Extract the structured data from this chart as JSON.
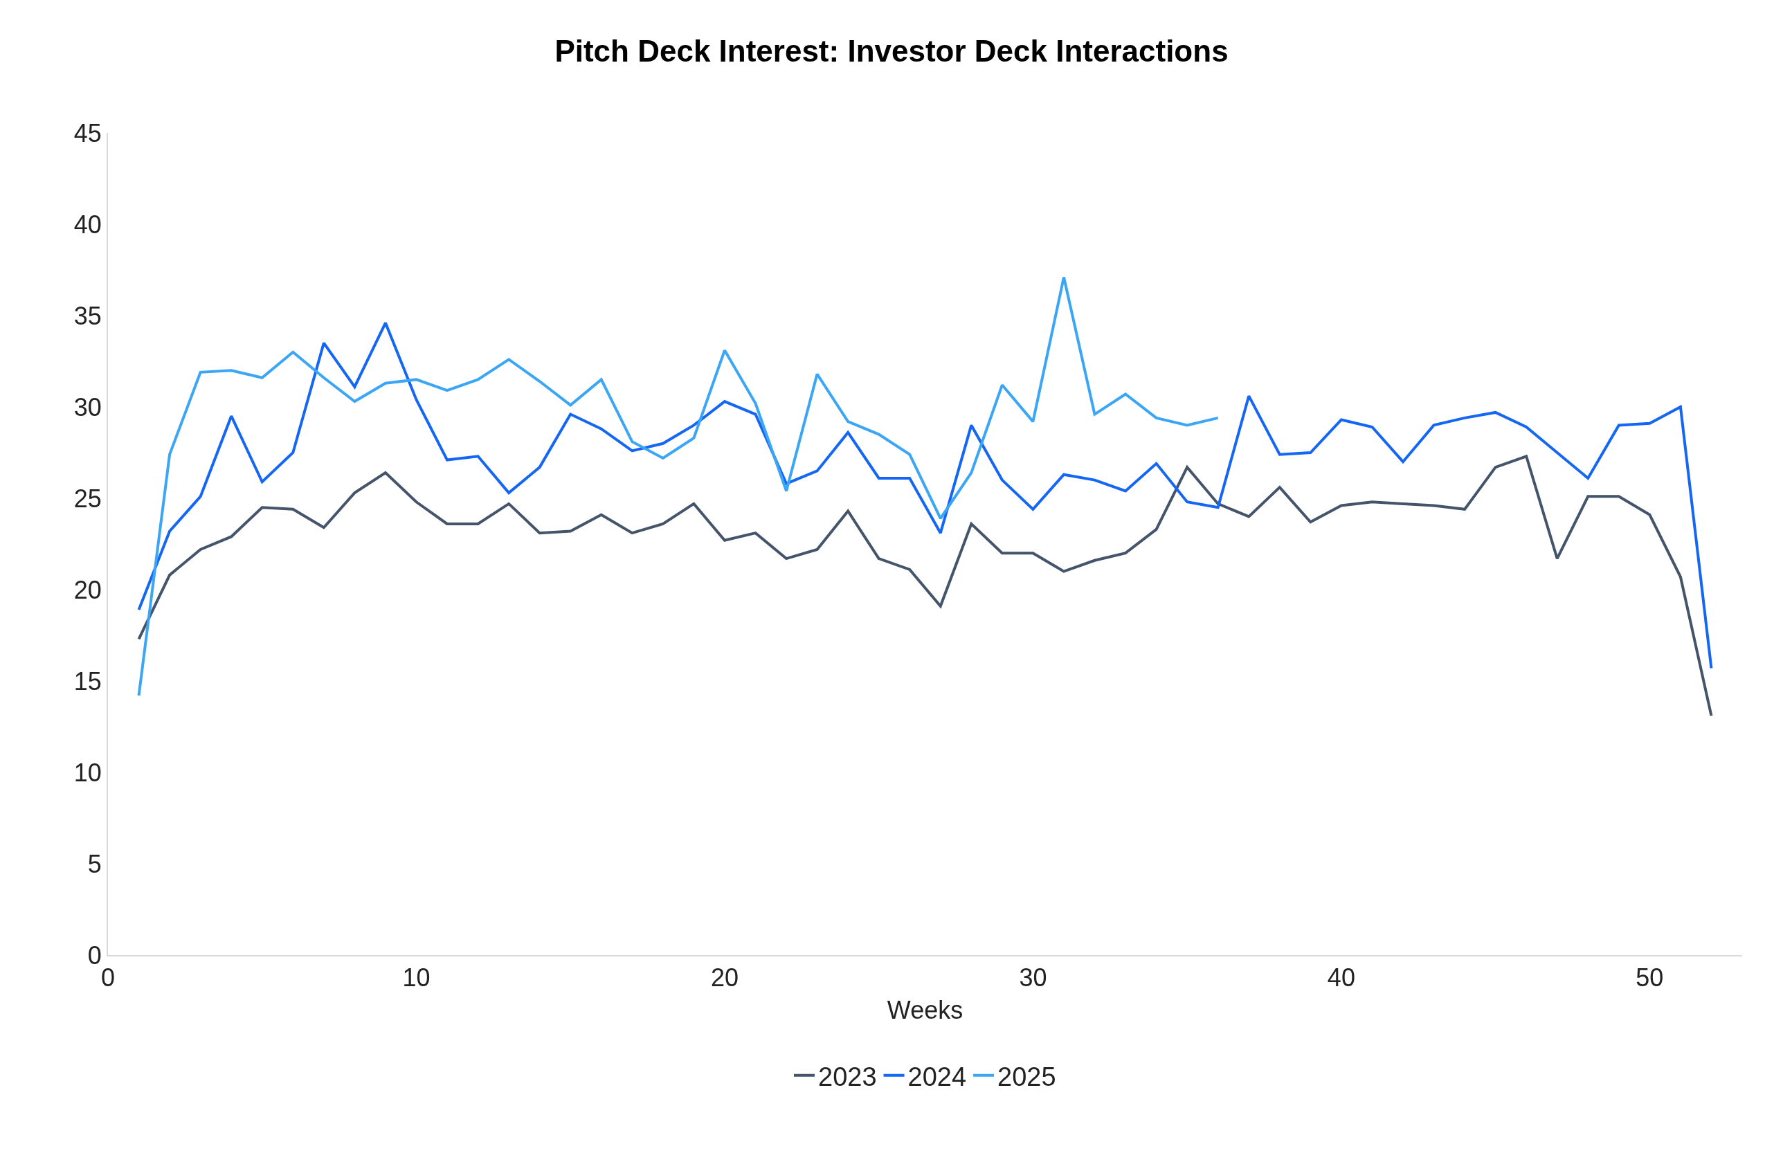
{
  "chart_data": {
    "type": "line",
    "title": "Pitch Deck Interest: Investor Deck Interactions",
    "xlabel": "Weeks",
    "x": [
      1,
      2,
      3,
      4,
      5,
      6,
      7,
      8,
      9,
      10,
      11,
      12,
      13,
      14,
      15,
      16,
      17,
      18,
      19,
      20,
      21,
      22,
      23,
      24,
      25,
      26,
      27,
      28,
      29,
      30,
      31,
      32,
      33,
      34,
      35,
      36,
      37,
      38,
      39,
      40,
      41,
      42,
      43,
      44,
      45,
      46,
      47,
      48,
      49,
      50,
      51,
      52
    ],
    "series": [
      {
        "name": "2023",
        "color": "#44546a",
        "values": [
          17.3,
          20.8,
          22.2,
          22.9,
          24.5,
          24.4,
          23.4,
          25.3,
          26.4,
          24.8,
          23.6,
          23.6,
          24.7,
          23.1,
          23.2,
          24.1,
          23.1,
          23.6,
          24.7,
          22.7,
          23.1,
          21.7,
          22.2,
          24.3,
          21.7,
          21.1,
          19.1,
          23.6,
          22.0,
          22.0,
          21.0,
          21.6,
          22.0,
          23.3,
          26.7,
          24.7,
          24.0,
          25.6,
          23.7,
          24.6,
          24.8,
          24.7,
          24.6,
          24.4,
          26.7,
          27.3,
          21.7,
          25.1,
          25.1,
          24.1,
          20.7,
          13.1
        ]
      },
      {
        "name": "2024",
        "color": "#1466f5",
        "values": [
          18.9,
          23.2,
          25.1,
          29.5,
          25.9,
          27.5,
          33.5,
          31.1,
          34.6,
          30.4,
          27.1,
          27.3,
          25.3,
          26.7,
          29.6,
          28.8,
          27.6,
          28.0,
          29.0,
          30.3,
          29.6,
          25.8,
          26.5,
          28.6,
          26.1,
          26.1,
          23.1,
          29.0,
          26.0,
          24.4,
          26.3,
          26.0,
          25.4,
          26.9,
          24.8,
          24.5,
          30.6,
          27.4,
          27.5,
          29.3,
          28.9,
          27.0,
          29.0,
          29.4,
          29.7,
          28.9,
          27.5,
          26.1,
          29.0,
          29.1,
          30.0,
          15.7
        ]
      },
      {
        "name": "2025",
        "color": "#3aa6f5",
        "values": [
          14.2,
          27.4,
          31.9,
          32.0,
          31.6,
          33.0,
          31.6,
          30.3,
          31.3,
          31.5,
          30.9,
          31.5,
          32.6,
          31.4,
          30.1,
          31.5,
          28.1,
          27.2,
          28.3,
          33.1,
          30.2,
          25.4,
          31.8,
          29.2,
          28.5,
          27.4,
          23.9,
          26.4,
          31.2,
          29.2,
          37.1,
          29.6,
          30.7,
          29.4,
          29.0,
          29.4,
          null,
          null,
          null,
          null,
          null,
          null,
          null,
          null,
          null,
          null,
          null,
          null,
          null,
          null,
          null,
          null
        ]
      }
    ],
    "xlim": [
      0,
      53
    ],
    "xticks": [
      0,
      10,
      20,
      30,
      40,
      50
    ],
    "ylim": [
      0,
      45
    ],
    "yticks": [
      0,
      5,
      10,
      15,
      20,
      25,
      30,
      35,
      40,
      45
    ],
    "legend": "bottom",
    "marker": "none",
    "line_style": "solid"
  }
}
